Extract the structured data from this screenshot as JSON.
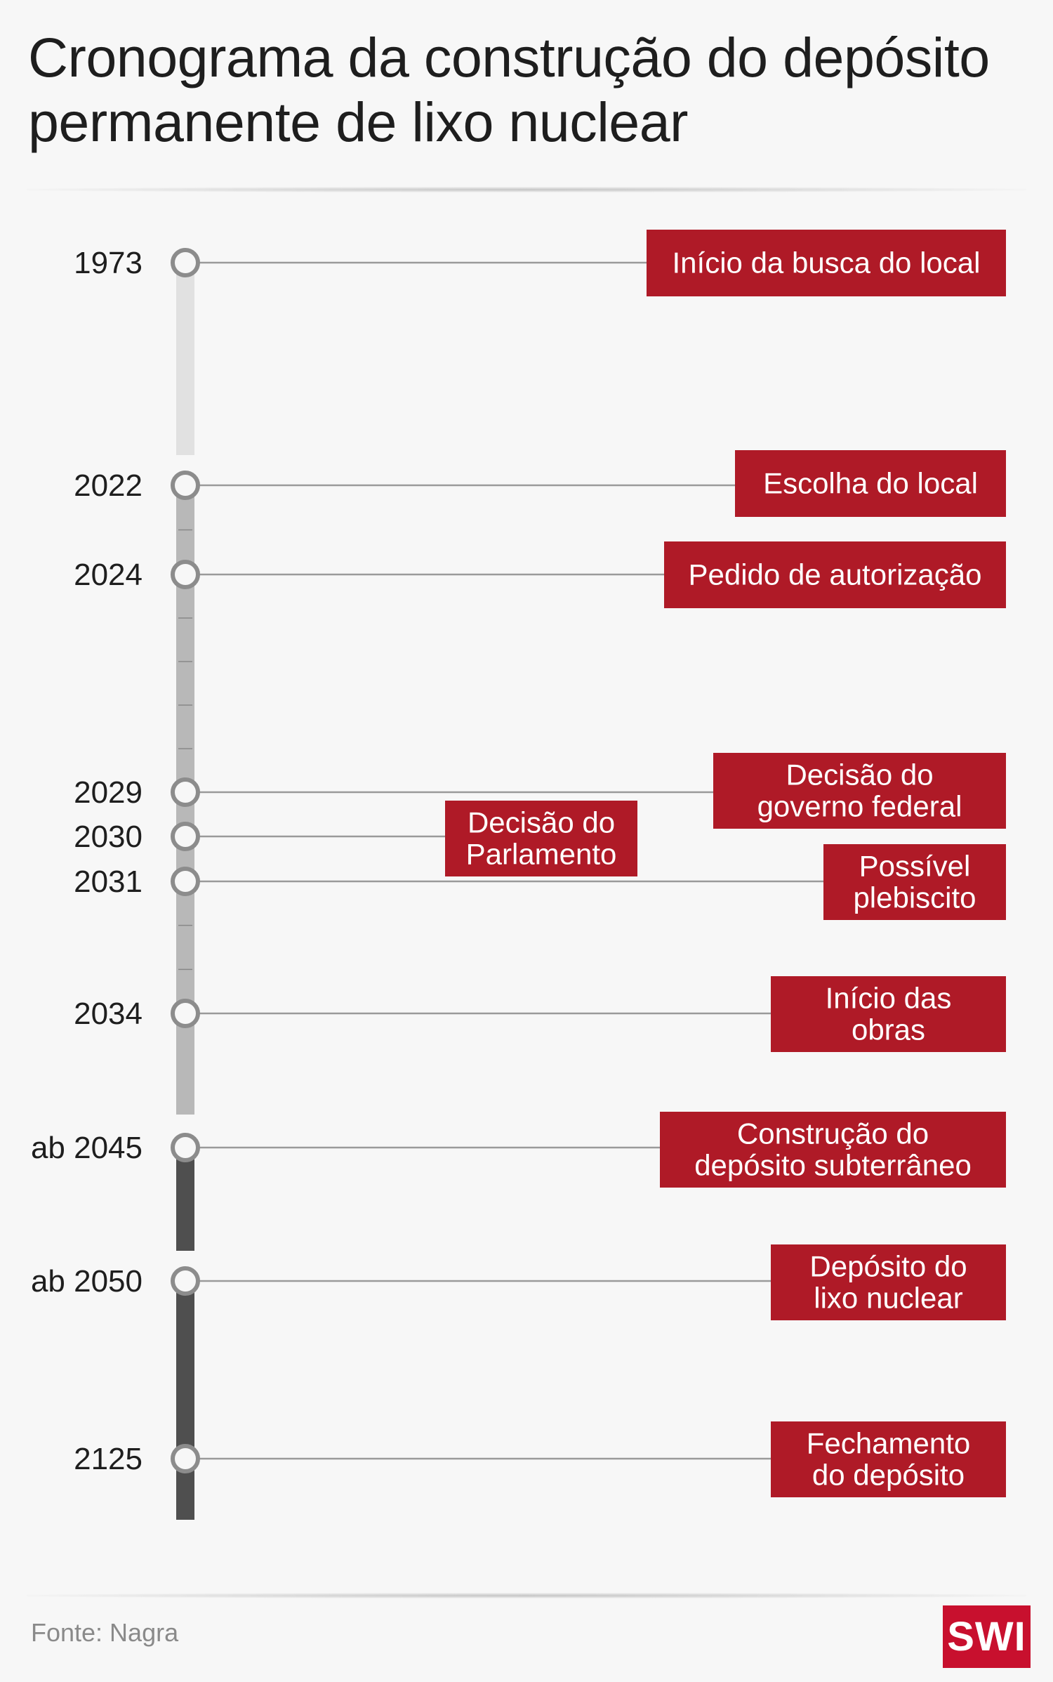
{
  "title": "Cronograma da construção do depósito permanente de lixo nuclear",
  "source": "Fonte: Nagra",
  "logo": "SWI",
  "colors": {
    "event_box": "#af1a27",
    "node": "#8c8c8c",
    "connector": "#9a9a9a",
    "phase_light": "#e1e1e1",
    "phase_mid": "#b8b8b8",
    "phase_dark": "#4f4f4f"
  },
  "milestones": [
    {
      "year": "1973",
      "event": [
        "Início da busca do local"
      ]
    },
    {
      "year": "2022",
      "event": [
        "Escolha do local"
      ]
    },
    {
      "year": "2024",
      "event": [
        "Pedido de autorização"
      ]
    },
    {
      "year": "2029",
      "event": [
        "Decisão do",
        "governo federal"
      ]
    },
    {
      "year": "2030",
      "event": [
        "Decisão do",
        "Parlamento"
      ]
    },
    {
      "year": "2031",
      "event": [
        "Possível",
        "plebiscito"
      ]
    },
    {
      "year": "2034",
      "event": [
        "Início das",
        "obras"
      ]
    },
    {
      "year": "ab 2045",
      "event": [
        "Construção do",
        "depósito subterrâneo"
      ]
    },
    {
      "year": "ab 2050",
      "event": [
        "Depósito do",
        "lixo nuclear"
      ]
    },
    {
      "year": "2125",
      "event": [
        "Fechamento",
        "do depósito"
      ]
    }
  ]
}
